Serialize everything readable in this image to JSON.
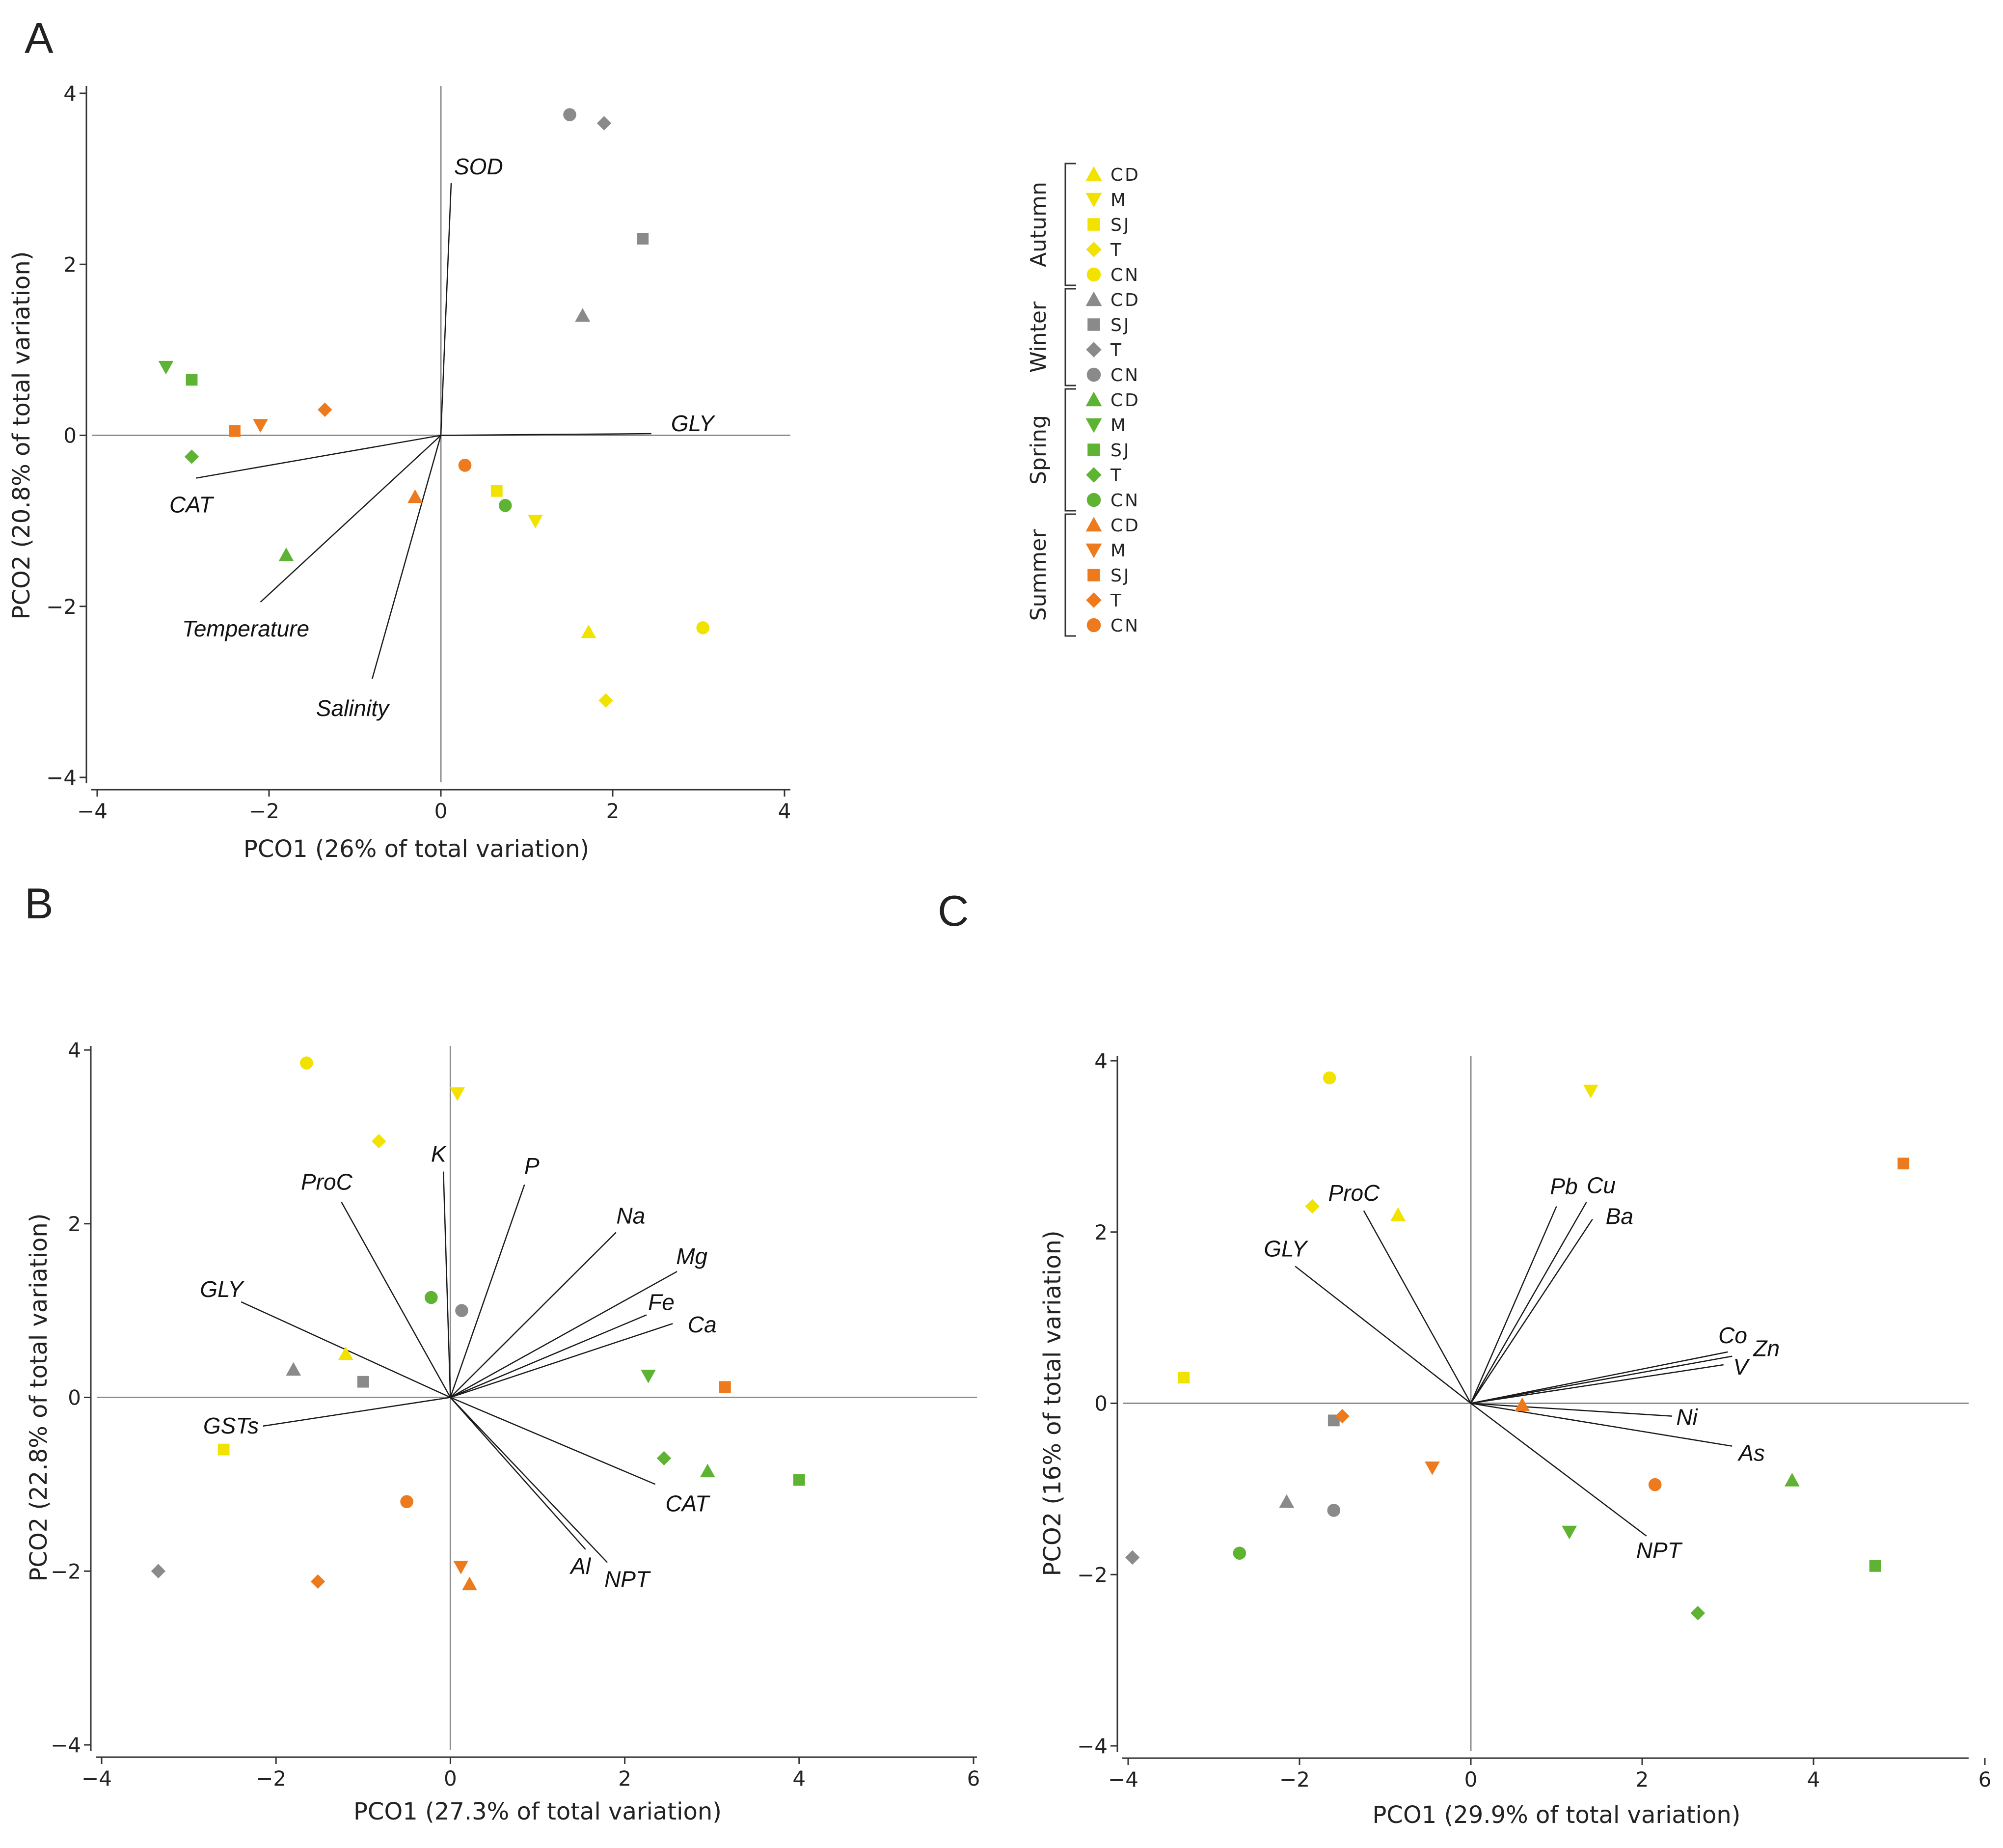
{
  "colors": {
    "Autumn": "#f2e200",
    "Winter": "#8a8a8a",
    "Spring": "#5eb332",
    "Summer": "#ee7a1e"
  },
  "legend": {
    "groups": [
      {
        "season": "Autumn",
        "entries": [
          {
            "marker": "triangle-up",
            "label": "CD"
          },
          {
            "marker": "triangle-down",
            "label": "M"
          },
          {
            "marker": "square",
            "label": "SJ"
          },
          {
            "marker": "diamond",
            "label": "T"
          },
          {
            "marker": "circle",
            "label": "CN"
          }
        ]
      },
      {
        "season": "Winter",
        "entries": [
          {
            "marker": "triangle-up",
            "label": "CD"
          },
          {
            "marker": "square",
            "label": "SJ"
          },
          {
            "marker": "diamond",
            "label": "T"
          },
          {
            "marker": "circle",
            "label": "CN"
          }
        ]
      },
      {
        "season": "Spring",
        "entries": [
          {
            "marker": "triangle-up",
            "label": "CD"
          },
          {
            "marker": "triangle-down",
            "label": "M"
          },
          {
            "marker": "square",
            "label": "SJ"
          },
          {
            "marker": "diamond",
            "label": "T"
          },
          {
            "marker": "circle",
            "label": "CN"
          }
        ]
      },
      {
        "season": "Summer",
        "entries": [
          {
            "marker": "triangle-up",
            "label": "CD"
          },
          {
            "marker": "triangle-down",
            "label": "M"
          },
          {
            "marker": "square",
            "label": "SJ"
          },
          {
            "marker": "diamond",
            "label": "T"
          },
          {
            "marker": "circle",
            "label": "CN"
          }
        ]
      }
    ]
  },
  "chart_data": [
    {
      "panel": "A",
      "type": "scatter",
      "xlabel": "PCO1 (26% of total variation)",
      "ylabel": "PCO2 (20.8% of total variation)",
      "xlim": [
        -4,
        4
      ],
      "ylim": [
        -4,
        4
      ],
      "xticks": [
        -4,
        -2,
        0,
        2,
        4
      ],
      "yticks": [
        -4,
        -2,
        0,
        2,
        4
      ],
      "points": [
        {
          "season": "Winter",
          "site": "CN",
          "marker": "circle",
          "x": 1.5,
          "y": 3.75
        },
        {
          "season": "Winter",
          "site": "T",
          "marker": "diamond",
          "x": 1.9,
          "y": 3.65
        },
        {
          "season": "Winter",
          "site": "SJ",
          "marker": "square",
          "x": 2.35,
          "y": 2.3
        },
        {
          "season": "Winter",
          "site": "CD",
          "marker": "triangle-up",
          "x": 1.65,
          "y": 1.4
        },
        {
          "season": "Spring",
          "site": "M",
          "marker": "triangle-down",
          "x": -3.2,
          "y": 0.8
        },
        {
          "season": "Spring",
          "site": "SJ",
          "marker": "square",
          "x": -2.9,
          "y": 0.65
        },
        {
          "season": "Spring",
          "site": "T",
          "marker": "diamond",
          "x": -2.9,
          "y": -0.25
        },
        {
          "season": "Spring",
          "site": "CD",
          "marker": "triangle-up",
          "x": -1.8,
          "y": -1.4
        },
        {
          "season": "Spring",
          "site": "CN",
          "marker": "circle",
          "x": 0.75,
          "y": -0.82
        },
        {
          "season": "Summer",
          "site": "SJ",
          "marker": "square",
          "x": -2.4,
          "y": 0.05
        },
        {
          "season": "Summer",
          "site": "M",
          "marker": "triangle-down",
          "x": -2.1,
          "y": 0.12
        },
        {
          "season": "Summer",
          "site": "T",
          "marker": "diamond",
          "x": -1.35,
          "y": 0.3
        },
        {
          "season": "Summer",
          "site": "CD",
          "marker": "triangle-up",
          "x": -0.3,
          "y": -0.72
        },
        {
          "season": "Summer",
          "site": "CN",
          "marker": "circle",
          "x": 0.28,
          "y": -0.35
        },
        {
          "season": "Autumn",
          "site": "SJ",
          "marker": "square",
          "x": 0.65,
          "y": -0.65
        },
        {
          "season": "Autumn",
          "site": "M",
          "marker": "triangle-down",
          "x": 1.1,
          "y": -1.0
        },
        {
          "season": "Autumn",
          "site": "CD",
          "marker": "triangle-up",
          "x": 1.72,
          "y": -2.3
        },
        {
          "season": "Autumn",
          "site": "CN",
          "marker": "circle",
          "x": 3.05,
          "y": -2.25
        },
        {
          "season": "Autumn",
          "site": "T",
          "marker": "diamond",
          "x": 1.92,
          "y": -3.1
        }
      ],
      "vectors": [
        {
          "label": "SOD",
          "x": 0.12,
          "y": 2.95
        },
        {
          "label": "GLY",
          "x": 2.45,
          "y": 0.02
        },
        {
          "label": "CAT",
          "x": -2.85,
          "y": -0.5
        },
        {
          "label": "Temperature",
          "x": -2.1,
          "y": -1.95
        },
        {
          "label": "Salinity",
          "x": -0.8,
          "y": -2.85
        }
      ]
    },
    {
      "panel": "B",
      "type": "scatter",
      "xlabel": "PCO1 (27.3% of total variation)",
      "ylabel": "PCO2 (22.8% of total variation)",
      "xlim": [
        -4,
        6
      ],
      "ylim": [
        -4,
        4
      ],
      "xticks": [
        -4,
        -2,
        0,
        2,
        4,
        6
      ],
      "yticks": [
        -4,
        -2,
        0,
        2,
        4
      ],
      "points": [
        {
          "season": "Autumn",
          "site": "CN",
          "marker": "circle",
          "x": -1.65,
          "y": 3.85
        },
        {
          "season": "Autumn",
          "site": "M",
          "marker": "triangle-down",
          "x": 0.08,
          "y": 3.5
        },
        {
          "season": "Autumn",
          "site": "T",
          "marker": "diamond",
          "x": -0.82,
          "y": 2.95
        },
        {
          "season": "Autumn",
          "site": "CD",
          "marker": "triangle-up",
          "x": -1.2,
          "y": 0.5
        },
        {
          "season": "Autumn",
          "site": "SJ",
          "marker": "square",
          "x": -2.6,
          "y": -0.6
        },
        {
          "season": "Winter",
          "site": "CN",
          "marker": "circle",
          "x": 0.13,
          "y": 1.0
        },
        {
          "season": "Winter",
          "site": "CD",
          "marker": "triangle-up",
          "x": -1.8,
          "y": 0.32
        },
        {
          "season": "Winter",
          "site": "SJ",
          "marker": "square",
          "x": -1.0,
          "y": 0.18
        },
        {
          "season": "Winter",
          "site": "T",
          "marker": "diamond",
          "x": -3.35,
          "y": -2.0
        },
        {
          "season": "Spring",
          "site": "CN",
          "marker": "circle",
          "x": -0.22,
          "y": 1.15
        },
        {
          "season": "Spring",
          "site": "M",
          "marker": "triangle-down",
          "x": 2.27,
          "y": 0.25
        },
        {
          "season": "Spring",
          "site": "T",
          "marker": "diamond",
          "x": 2.45,
          "y": -0.7
        },
        {
          "season": "Spring",
          "site": "CD",
          "marker": "triangle-up",
          "x": 2.95,
          "y": -0.85
        },
        {
          "season": "Spring",
          "site": "SJ",
          "marker": "square",
          "x": 4.0,
          "y": -0.95
        },
        {
          "season": "Summer",
          "site": "SJ",
          "marker": "square",
          "x": 3.15,
          "y": 0.12
        },
        {
          "season": "Summer",
          "site": "CN",
          "marker": "circle",
          "x": -0.5,
          "y": -1.2
        },
        {
          "season": "Summer",
          "site": "M",
          "marker": "triangle-down",
          "x": 0.12,
          "y": -1.95
        },
        {
          "season": "Summer",
          "site": "CD",
          "marker": "triangle-up",
          "x": 0.22,
          "y": -2.15
        },
        {
          "season": "Summer",
          "site": "T",
          "marker": "diamond",
          "x": -1.52,
          "y": -2.12
        }
      ],
      "vectors": [
        {
          "label": "ProC",
          "x": -1.25,
          "y": 2.25
        },
        {
          "label": "K",
          "x": -0.08,
          "y": 2.6
        },
        {
          "label": "P",
          "x": 0.85,
          "y": 2.45
        },
        {
          "label": "Na",
          "x": 1.9,
          "y": 1.9
        },
        {
          "label": "Mg",
          "x": 2.6,
          "y": 1.45
        },
        {
          "label": "Fe",
          "x": 2.25,
          "y": 0.95
        },
        {
          "label": "Ca",
          "x": 2.55,
          "y": 0.85
        },
        {
          "label": "GLY",
          "x": -2.4,
          "y": 1.1
        },
        {
          "label": "GSTs",
          "x": -2.15,
          "y": -0.33
        },
        {
          "label": "CAT",
          "x": 2.35,
          "y": -1.0
        },
        {
          "label": "Al",
          "x": 1.55,
          "y": -1.75
        },
        {
          "label": "NPT",
          "x": 1.8,
          "y": -1.9
        }
      ]
    },
    {
      "panel": "C",
      "type": "scatter",
      "xlabel": "PCO1 (29.9% of total variation)",
      "ylabel": "PCO2 (16% of total variation)",
      "xlim": [
        -4,
        6
      ],
      "ylim": [
        -4,
        4
      ],
      "xticks": [
        -4,
        -2,
        0,
        2,
        4,
        6
      ],
      "yticks": [
        -4,
        -2,
        0,
        2,
        4
      ],
      "points": [
        {
          "season": "Autumn",
          "site": "CN",
          "marker": "circle",
          "x": -1.65,
          "y": 3.8
        },
        {
          "season": "Autumn",
          "site": "M",
          "marker": "triangle-down",
          "x": 1.4,
          "y": 3.65
        },
        {
          "season": "Autumn",
          "site": "T",
          "marker": "diamond",
          "x": -1.85,
          "y": 2.3
        },
        {
          "season": "Autumn",
          "site": "CD",
          "marker": "triangle-up",
          "x": -0.85,
          "y": 2.2
        },
        {
          "season": "Autumn",
          "site": "SJ",
          "marker": "square",
          "x": -3.35,
          "y": 0.3
        },
        {
          "season": "Winter",
          "site": "SJ",
          "marker": "square",
          "x": -1.6,
          "y": -0.2
        },
        {
          "season": "Winter",
          "site": "CD",
          "marker": "triangle-up",
          "x": -2.15,
          "y": -1.15
        },
        {
          "season": "Winter",
          "site": "CN",
          "marker": "circle",
          "x": -1.6,
          "y": -1.25
        },
        {
          "season": "Winter",
          "site": "T",
          "marker": "diamond",
          "x": -3.95,
          "y": -1.8
        },
        {
          "season": "Spring",
          "site": "CN",
          "marker": "circle",
          "x": -2.7,
          "y": -1.75
        },
        {
          "season": "Spring",
          "site": "M",
          "marker": "triangle-down",
          "x": 1.15,
          "y": -1.5
        },
        {
          "season": "Spring",
          "site": "T",
          "marker": "diamond",
          "x": 2.65,
          "y": -2.45
        },
        {
          "season": "Spring",
          "site": "CD",
          "marker": "triangle-up",
          "x": 3.75,
          "y": -0.9
        },
        {
          "season": "Spring",
          "site": "SJ",
          "marker": "square",
          "x": 4.72,
          "y": -1.9
        },
        {
          "season": "Summer",
          "site": "T",
          "marker": "diamond",
          "x": -1.5,
          "y": -0.15
        },
        {
          "season": "Summer",
          "site": "M",
          "marker": "triangle-down",
          "x": -0.45,
          "y": -0.75
        },
        {
          "season": "Summer",
          "site": "CD",
          "marker": "triangle-up",
          "x": 0.6,
          "y": -0.02
        },
        {
          "season": "Summer",
          "site": "CN",
          "marker": "circle",
          "x": 2.15,
          "y": -0.95
        },
        {
          "season": "Summer",
          "site": "SJ",
          "marker": "square",
          "x": 5.05,
          "y": 2.8
        }
      ],
      "vectors": [
        {
          "label": "Pb",
          "x": 1.0,
          "y": 2.3
        },
        {
          "label": "Cu",
          "x": 1.35,
          "y": 2.35
        },
        {
          "label": "Ba",
          "x": 1.42,
          "y": 2.15
        },
        {
          "label": "Co",
          "x": 3.0,
          "y": 0.6
        },
        {
          "label": "Zn",
          "x": 3.05,
          "y": 0.55
        },
        {
          "label": "V",
          "x": 2.95,
          "y": 0.45
        },
        {
          "label": "Ni",
          "x": 2.35,
          "y": -0.15
        },
        {
          "label": "As",
          "x": 3.05,
          "y": -0.5
        },
        {
          "label": "NPT",
          "x": 2.05,
          "y": -1.55
        },
        {
          "label": "ProC",
          "x": -1.25,
          "y": 2.25
        },
        {
          "label": "GLY",
          "x": -2.05,
          "y": 1.6
        }
      ]
    }
  ]
}
